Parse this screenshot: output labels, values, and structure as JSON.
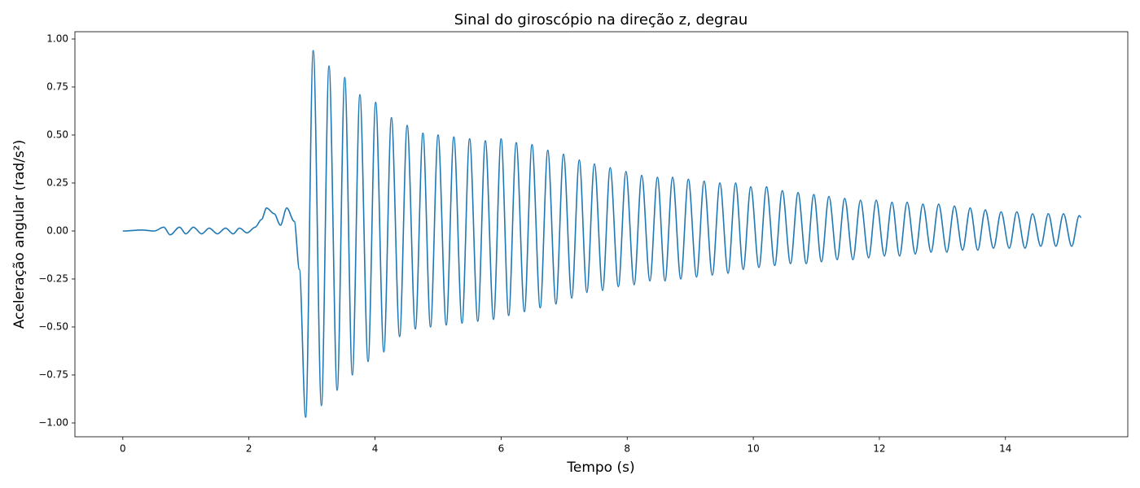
{
  "chart_data": {
    "type": "line",
    "title": "Sinal do giroscópio na direção z, degrau",
    "x_label": "Tempo (s)",
    "y_label": "Aceleração angular (rad/s²)",
    "xlim": [
      -0.76,
      15.94
    ],
    "ylim": [
      -1.072,
      1.038
    ],
    "xticks": [
      0,
      2,
      4,
      6,
      8,
      10,
      12,
      14
    ],
    "yticks": [
      {
        "value": -1,
        "label": "−1.00"
      },
      {
        "value": -0.75,
        "label": "−0.75"
      },
      {
        "value": -0.5,
        "label": "−0.50"
      },
      {
        "value": -0.25,
        "label": "−0.25"
      },
      {
        "value": 0,
        "label": "0.00"
      },
      {
        "value": 0.25,
        "label": "0.25"
      },
      {
        "value": 0.5,
        "label": "0.50"
      },
      {
        "value": 0.75,
        "label": "0.75"
      },
      {
        "value": 1,
        "label": "1.00"
      }
    ],
    "grid": false,
    "series": [
      {
        "color": "#1f77b4",
        "x": [
          0,
          0.3,
          0.5,
          0.65,
          0.75,
          0.9,
          1.0,
          1.12,
          1.25,
          1.37,
          1.5,
          1.63,
          1.75,
          1.85,
          1.97,
          2.1,
          2.2,
          2.28,
          2.4,
          2.5,
          2.6,
          2.72,
          2.8,
          2.9,
          3.02,
          3.15,
          3.27,
          3.4,
          3.52,
          3.64,
          3.76,
          3.89,
          4.01,
          4.14,
          4.26,
          4.39,
          4.51,
          4.64,
          4.76,
          4.88,
          5.0,
          5.13,
          5.25,
          5.38,
          5.5,
          5.63,
          5.75,
          5.88,
          6.0,
          6.12,
          6.24,
          6.37,
          6.49,
          6.62,
          6.74,
          6.87,
          6.99,
          7.12,
          7.24,
          7.36,
          7.48,
          7.61,
          7.73,
          7.86,
          7.98,
          8.11,
          8.23,
          8.36,
          8.48,
          8.6,
          8.72,
          8.85,
          8.97,
          9.1,
          9.22,
          9.35,
          9.47,
          9.6,
          9.72,
          9.84,
          9.96,
          10.09,
          10.21,
          10.34,
          10.46,
          10.59,
          10.71,
          10.84,
          10.96,
          11.08,
          11.2,
          11.33,
          11.45,
          11.58,
          11.7,
          11.83,
          11.95,
          12.08,
          12.2,
          12.32,
          12.44,
          12.57,
          12.69,
          12.82,
          12.94,
          13.07,
          13.19,
          13.32,
          13.44,
          13.56,
          13.68,
          13.81,
          13.93,
          14.06,
          14.18,
          14.31,
          14.43,
          14.56,
          14.68,
          14.8,
          14.92,
          15.05,
          15.17,
          15.2
        ],
        "values": [
          0,
          0.005,
          0,
          0.02,
          -0.02,
          0.02,
          -0.015,
          0.02,
          -0.015,
          0.015,
          -0.015,
          0.015,
          -0.015,
          0.015,
          -0.01,
          0.02,
          0.06,
          0.12,
          0.09,
          0.03,
          0.12,
          0.05,
          -0.2,
          -0.97,
          0.94,
          -0.91,
          0.86,
          -0.83,
          0.8,
          -0.75,
          0.71,
          -0.68,
          0.67,
          -0.63,
          0.59,
          -0.55,
          0.55,
          -0.51,
          0.51,
          -0.5,
          0.5,
          -0.49,
          0.49,
          -0.48,
          0.48,
          -0.47,
          0.47,
          -0.46,
          0.48,
          -0.44,
          0.46,
          -0.42,
          0.45,
          -0.4,
          0.42,
          -0.38,
          0.4,
          -0.35,
          0.37,
          -0.32,
          0.35,
          -0.31,
          0.33,
          -0.29,
          0.31,
          -0.28,
          0.29,
          -0.26,
          0.28,
          -0.26,
          0.28,
          -0.25,
          0.27,
          -0.24,
          0.26,
          -0.23,
          0.25,
          -0.22,
          0.25,
          -0.2,
          0.23,
          -0.19,
          0.23,
          -0.18,
          0.21,
          -0.17,
          0.2,
          -0.17,
          0.19,
          -0.16,
          0.18,
          -0.15,
          0.17,
          -0.15,
          0.16,
          -0.14,
          0.16,
          -0.13,
          0.15,
          -0.13,
          0.15,
          -0.12,
          0.14,
          -0.11,
          0.14,
          -0.11,
          0.13,
          -0.1,
          0.12,
          -0.1,
          0.11,
          -0.09,
          0.1,
          -0.09,
          0.1,
          -0.09,
          0.09,
          -0.08,
          0.09,
          -0.08,
          0.09,
          -0.08,
          0.08,
          0.07
        ]
      }
    ]
  }
}
